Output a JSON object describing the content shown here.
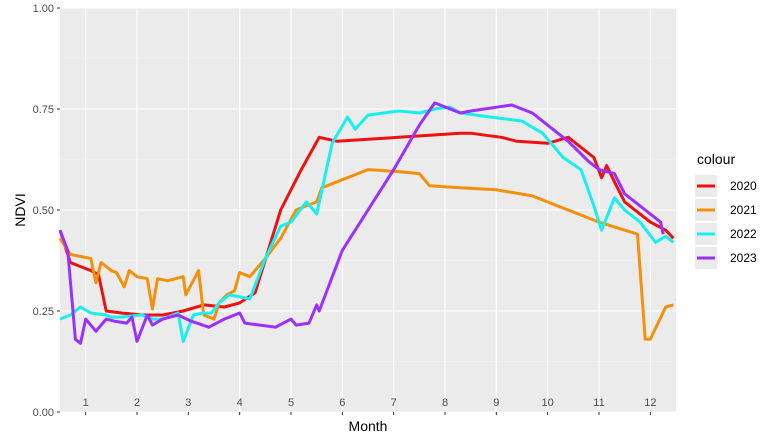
{
  "chart_data": {
    "type": "line",
    "xlabel": "Month",
    "ylabel": "NDVI",
    "xlim": [
      0,
      12
    ],
    "ylim": [
      0,
      1
    ],
    "y_ticks": [
      0,
      0.25,
      0.5,
      0.75,
      1
    ],
    "y_tick_labels": [
      "0.00",
      "0.25",
      "0.50",
      "0.75",
      "1.00"
    ],
    "x_tick_labels": [
      "1",
      "2",
      "3",
      "4",
      "5",
      "6",
      "7",
      "8",
      "9",
      "10",
      "11",
      "12"
    ],
    "grid": true,
    "legend": {
      "title": "colour",
      "position": "right"
    },
    "series": [
      {
        "name": "2020",
        "color": "#ee1111",
        "points": [
          [
            0.0,
            0.45
          ],
          [
            0.2,
            0.37
          ],
          [
            0.6,
            0.35
          ],
          [
            0.75,
            0.34
          ],
          [
            0.9,
            0.25
          ],
          [
            1.2,
            0.245
          ],
          [
            1.6,
            0.24
          ],
          [
            2.0,
            0.24
          ],
          [
            2.4,
            0.25
          ],
          [
            2.8,
            0.265
          ],
          [
            3.2,
            0.26
          ],
          [
            3.5,
            0.27
          ],
          [
            3.8,
            0.295
          ],
          [
            4.3,
            0.5
          ],
          [
            4.7,
            0.6
          ],
          [
            5.05,
            0.68
          ],
          [
            5.4,
            0.67
          ],
          [
            6.0,
            0.675
          ],
          [
            6.6,
            0.68
          ],
          [
            7.2,
            0.685
          ],
          [
            7.8,
            0.69
          ],
          [
            8.0,
            0.69
          ],
          [
            8.3,
            0.685
          ],
          [
            8.6,
            0.68
          ],
          [
            8.9,
            0.67
          ],
          [
            9.5,
            0.665
          ],
          [
            9.9,
            0.68
          ],
          [
            10.1,
            0.66
          ],
          [
            10.4,
            0.63
          ],
          [
            10.55,
            0.58
          ],
          [
            10.65,
            0.61
          ],
          [
            10.8,
            0.57
          ],
          [
            11.0,
            0.52
          ],
          [
            11.2,
            0.5
          ],
          [
            11.5,
            0.47
          ],
          [
            11.8,
            0.45
          ],
          [
            11.95,
            0.43
          ]
        ]
      },
      {
        "name": "2021",
        "color": "#f5900a",
        "points": [
          [
            0.0,
            0.43
          ],
          [
            0.2,
            0.39
          ],
          [
            0.4,
            0.385
          ],
          [
            0.6,
            0.38
          ],
          [
            0.7,
            0.32
          ],
          [
            0.8,
            0.37
          ],
          [
            1.0,
            0.35
          ],
          [
            1.1,
            0.345
          ],
          [
            1.25,
            0.31
          ],
          [
            1.35,
            0.35
          ],
          [
            1.5,
            0.335
          ],
          [
            1.7,
            0.33
          ],
          [
            1.8,
            0.255
          ],
          [
            1.9,
            0.33
          ],
          [
            2.1,
            0.325
          ],
          [
            2.4,
            0.335
          ],
          [
            2.45,
            0.29
          ],
          [
            2.7,
            0.35
          ],
          [
            2.8,
            0.24
          ],
          [
            3.0,
            0.23
          ],
          [
            3.1,
            0.27
          ],
          [
            3.25,
            0.29
          ],
          [
            3.4,
            0.3
          ],
          [
            3.5,
            0.345
          ],
          [
            3.7,
            0.335
          ],
          [
            4.0,
            0.38
          ],
          [
            4.3,
            0.43
          ],
          [
            4.6,
            0.5
          ],
          [
            5.0,
            0.52
          ],
          [
            5.1,
            0.555
          ],
          [
            6.0,
            0.6
          ],
          [
            6.6,
            0.595
          ],
          [
            7.0,
            0.59
          ],
          [
            7.2,
            0.56
          ],
          [
            7.8,
            0.555
          ],
          [
            8.5,
            0.55
          ],
          [
            9.2,
            0.535
          ],
          [
            9.7,
            0.51
          ],
          [
            10.5,
            0.47
          ],
          [
            11.0,
            0.45
          ],
          [
            11.25,
            0.44
          ],
          [
            11.4,
            0.18
          ],
          [
            11.5,
            0.18
          ],
          [
            11.8,
            0.26
          ],
          [
            11.95,
            0.265
          ]
        ]
      },
      {
        "name": "2022",
        "color": "#18efef",
        "points": [
          [
            0.0,
            0.23
          ],
          [
            0.2,
            0.24
          ],
          [
            0.4,
            0.26
          ],
          [
            0.6,
            0.245
          ],
          [
            0.9,
            0.24
          ],
          [
            1.0,
            0.235
          ],
          [
            1.2,
            0.235
          ],
          [
            1.6,
            0.24
          ],
          [
            1.8,
            0.23
          ],
          [
            2.0,
            0.23
          ],
          [
            2.3,
            0.245
          ],
          [
            2.4,
            0.175
          ],
          [
            2.6,
            0.24
          ],
          [
            2.8,
            0.245
          ],
          [
            2.95,
            0.245
          ],
          [
            3.1,
            0.27
          ],
          [
            3.3,
            0.29
          ],
          [
            3.5,
            0.285
          ],
          [
            3.7,
            0.28
          ],
          [
            4.0,
            0.38
          ],
          [
            4.3,
            0.46
          ],
          [
            4.5,
            0.47
          ],
          [
            4.8,
            0.52
          ],
          [
            5.0,
            0.49
          ],
          [
            5.3,
            0.665
          ],
          [
            5.6,
            0.73
          ],
          [
            5.75,
            0.7
          ],
          [
            6.0,
            0.735
          ],
          [
            6.6,
            0.745
          ],
          [
            7.0,
            0.74
          ],
          [
            7.3,
            0.75
          ],
          [
            7.6,
            0.755
          ],
          [
            7.8,
            0.74
          ],
          [
            8.4,
            0.73
          ],
          [
            9.0,
            0.72
          ],
          [
            9.4,
            0.69
          ],
          [
            9.8,
            0.63
          ],
          [
            10.15,
            0.6
          ],
          [
            10.4,
            0.51
          ],
          [
            10.55,
            0.45
          ],
          [
            10.8,
            0.53
          ],
          [
            11.0,
            0.5
          ],
          [
            11.3,
            0.47
          ],
          [
            11.6,
            0.42
          ],
          [
            11.8,
            0.435
          ],
          [
            11.95,
            0.42
          ]
        ]
      },
      {
        "name": "2023",
        "color": "#9b30ff",
        "points": [
          [
            0.0,
            0.45
          ],
          [
            0.15,
            0.4
          ],
          [
            0.3,
            0.18
          ],
          [
            0.4,
            0.17
          ],
          [
            0.5,
            0.23
          ],
          [
            0.7,
            0.2
          ],
          [
            0.9,
            0.23
          ],
          [
            1.05,
            0.225
          ],
          [
            1.3,
            0.22
          ],
          [
            1.4,
            0.235
          ],
          [
            1.5,
            0.175
          ],
          [
            1.7,
            0.24
          ],
          [
            1.8,
            0.215
          ],
          [
            2.0,
            0.23
          ],
          [
            2.3,
            0.24
          ],
          [
            2.55,
            0.225
          ],
          [
            2.9,
            0.21
          ],
          [
            3.2,
            0.23
          ],
          [
            3.5,
            0.245
          ],
          [
            3.6,
            0.22
          ],
          [
            4.2,
            0.21
          ],
          [
            4.5,
            0.23
          ],
          [
            4.6,
            0.215
          ],
          [
            4.85,
            0.22
          ],
          [
            5.0,
            0.265
          ],
          [
            5.05,
            0.25
          ],
          [
            5.5,
            0.4
          ],
          [
            6.0,
            0.5
          ],
          [
            6.5,
            0.6
          ],
          [
            7.0,
            0.71
          ],
          [
            7.3,
            0.765
          ],
          [
            7.8,
            0.74
          ],
          [
            8.0,
            0.745
          ],
          [
            8.8,
            0.76
          ],
          [
            9.0,
            0.75
          ],
          [
            9.2,
            0.74
          ],
          [
            9.5,
            0.71
          ],
          [
            9.9,
            0.67
          ],
          [
            10.3,
            0.62
          ],
          [
            10.5,
            0.6
          ],
          [
            10.8,
            0.59
          ],
          [
            11.0,
            0.54
          ],
          [
            11.4,
            0.5
          ],
          [
            11.6,
            0.48
          ],
          [
            11.7,
            0.47
          ],
          [
            11.75,
            0.44
          ]
        ]
      }
    ]
  }
}
